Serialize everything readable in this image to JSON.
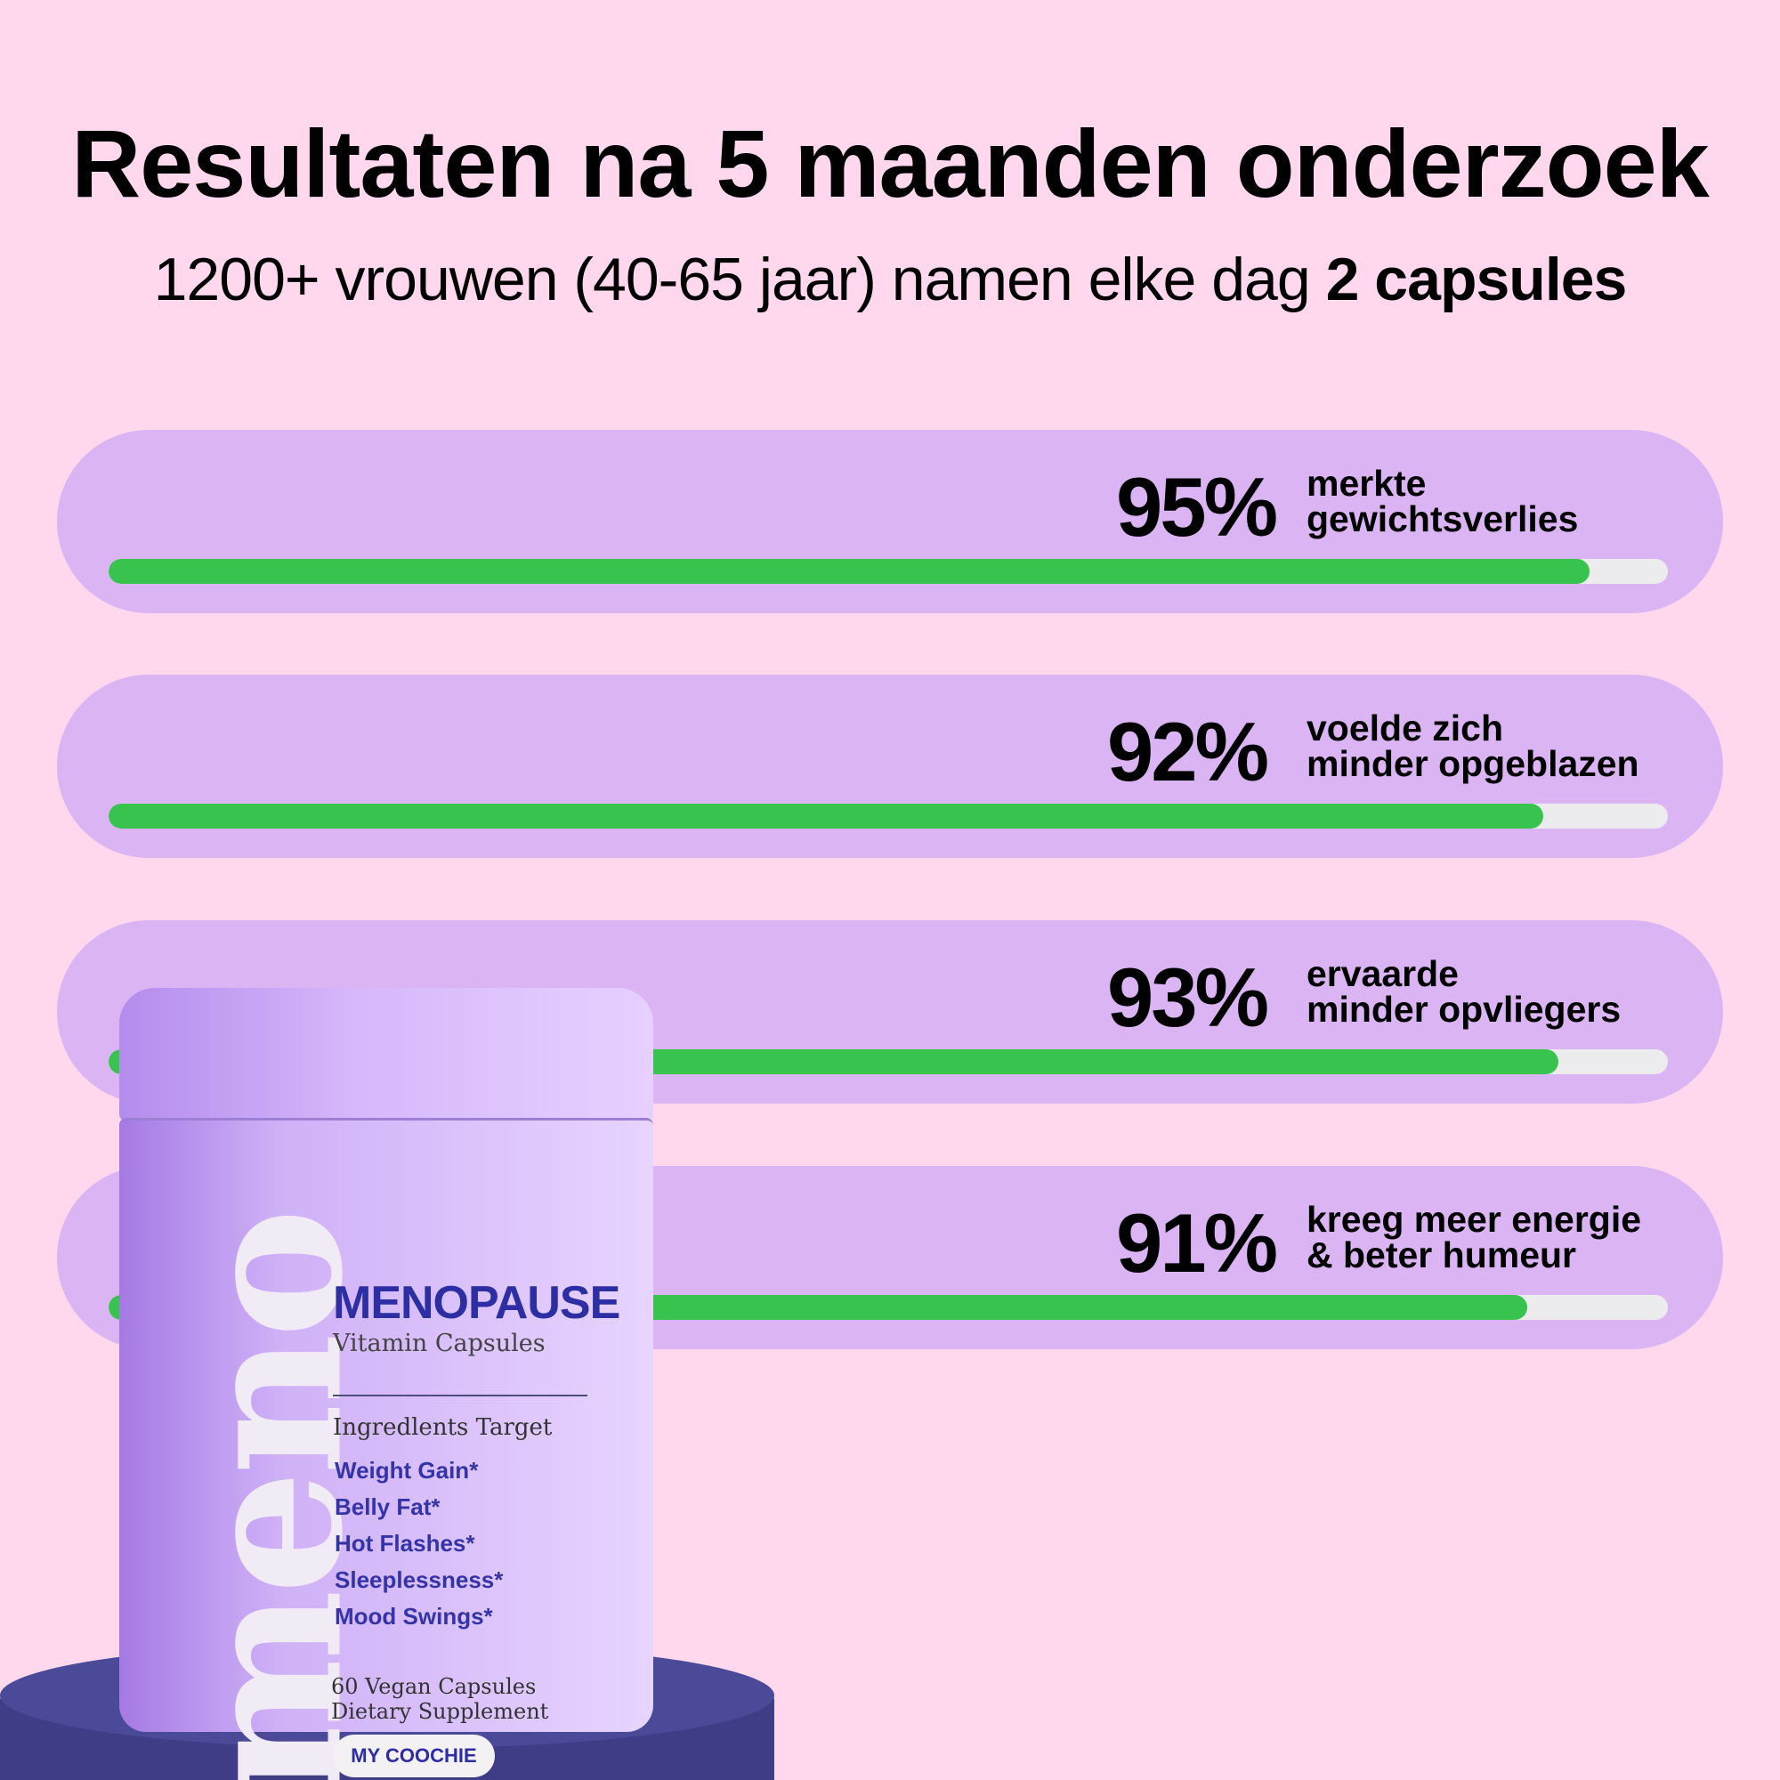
{
  "header": {
    "title": "Resultaten na 5 maanden onderzoek",
    "subtitle_prefix": "1200+ vrouwen (40-65 jaar) namen elke dag ",
    "subtitle_bold": "2 capsules"
  },
  "stats": [
    {
      "percent_label": "95%",
      "line1": "merkte",
      "line2": "gewichtsverlies",
      "value": 0.95
    },
    {
      "percent_label": "92%",
      "line1": "voelde zich",
      "line2": "minder opgeblazen",
      "value": 0.92
    },
    {
      "percent_label": "93%",
      "line1": "ervaarde",
      "line2": "minder opvliegers",
      "value": 0.93
    },
    {
      "percent_label": "91%",
      "line1": "kreeg meer energie",
      "line2": "& beter humeur",
      "value": 0.91
    }
  ],
  "product": {
    "logo": "meno",
    "name": "MENOPAUSE",
    "subtitle": "Vitamin Capsules",
    "ingredients_title": "Ingredlents Target",
    "ingredients": [
      "Weight Gain*",
      "Belly Fat*",
      "Hot Flashes*",
      "Sleeplessness*",
      "Mood Swings*"
    ],
    "capsules": "60 Vegan Capsules",
    "supplement": "Dietary Supplement",
    "brand": "MY COOCHIE"
  },
  "colors": {
    "background": "#ffd8ee",
    "card": "#dbb5f3",
    "bar_fill": "#37c34e",
    "bar_track": "#ecebee",
    "product_accent": "#2d2ea3"
  }
}
